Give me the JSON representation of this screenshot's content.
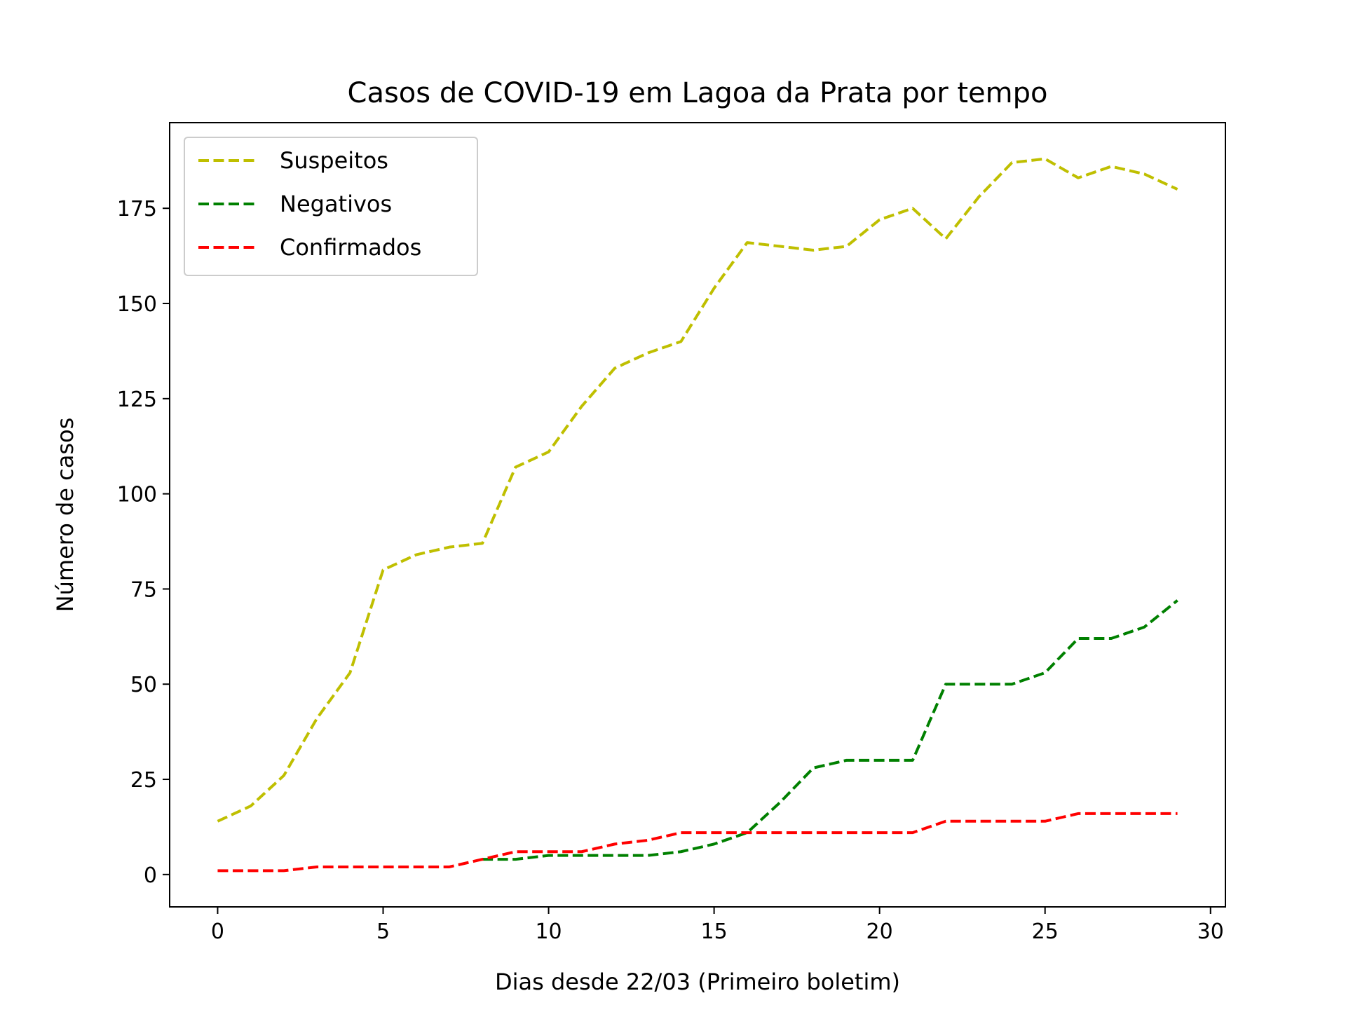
{
  "chart_data": {
    "type": "line",
    "title": "Casos de COVID-19 em Lagoa da Prata por tempo",
    "xlabel": "Dias desde 22/03 (Primeiro boletim)",
    "ylabel": "Número de casos",
    "xlim": [
      -1.45,
      30.45
    ],
    "ylim": [
      -8.5,
      197.5
    ],
    "xticks": [
      0,
      5,
      10,
      15,
      20,
      25,
      30
    ],
    "xtick_labels": [
      "0",
      "5",
      "10",
      "15",
      "20",
      "25",
      "30"
    ],
    "yticks": [
      0,
      25,
      50,
      75,
      100,
      125,
      150,
      175
    ],
    "ytick_labels": [
      "0",
      "25",
      "50",
      "75",
      "100",
      "125",
      "150",
      "175"
    ],
    "grid": false,
    "legend_position": "top-left",
    "series": [
      {
        "name": "Suspeitos",
        "color": "#bfbf00",
        "line_style": "dashed",
        "x": [
          0,
          1,
          2,
          3,
          4,
          5,
          6,
          7,
          8,
          9,
          10,
          11,
          12,
          13,
          14,
          15,
          16,
          17,
          18,
          19,
          20,
          21,
          22,
          23,
          24,
          25,
          26,
          27,
          28,
          29
        ],
        "values": [
          14,
          18,
          26,
          41,
          53,
          80,
          84,
          86,
          87,
          107,
          111,
          123,
          133,
          137,
          140,
          154,
          166,
          165,
          164,
          165,
          172,
          175,
          167,
          178,
          187,
          188,
          183,
          186,
          184,
          180
        ]
      },
      {
        "name": "Negativos",
        "color": "#008000",
        "line_style": "dashed",
        "x": [
          8,
          9,
          10,
          11,
          12,
          13,
          14,
          15,
          16,
          17,
          18,
          19,
          20,
          21,
          22,
          23,
          24,
          25,
          26,
          27,
          28,
          29
        ],
        "values": [
          4,
          4,
          5,
          5,
          5,
          5,
          6,
          8,
          11,
          19,
          28,
          30,
          30,
          30,
          50,
          50,
          50,
          53,
          62,
          62,
          65,
          72
        ]
      },
      {
        "name": "Confirmados",
        "color": "#ff0000",
        "line_style": "dashed",
        "x": [
          0,
          1,
          2,
          3,
          4,
          5,
          6,
          7,
          8,
          9,
          10,
          11,
          12,
          13,
          14,
          15,
          16,
          17,
          18,
          19,
          20,
          21,
          22,
          23,
          24,
          25,
          26,
          27,
          28,
          29
        ],
        "values": [
          1,
          1,
          1,
          2,
          2,
          2,
          2,
          2,
          4,
          6,
          6,
          6,
          8,
          9,
          11,
          11,
          11,
          11,
          11,
          11,
          11,
          11,
          14,
          14,
          14,
          14,
          16,
          16,
          16,
          16
        ]
      }
    ]
  }
}
